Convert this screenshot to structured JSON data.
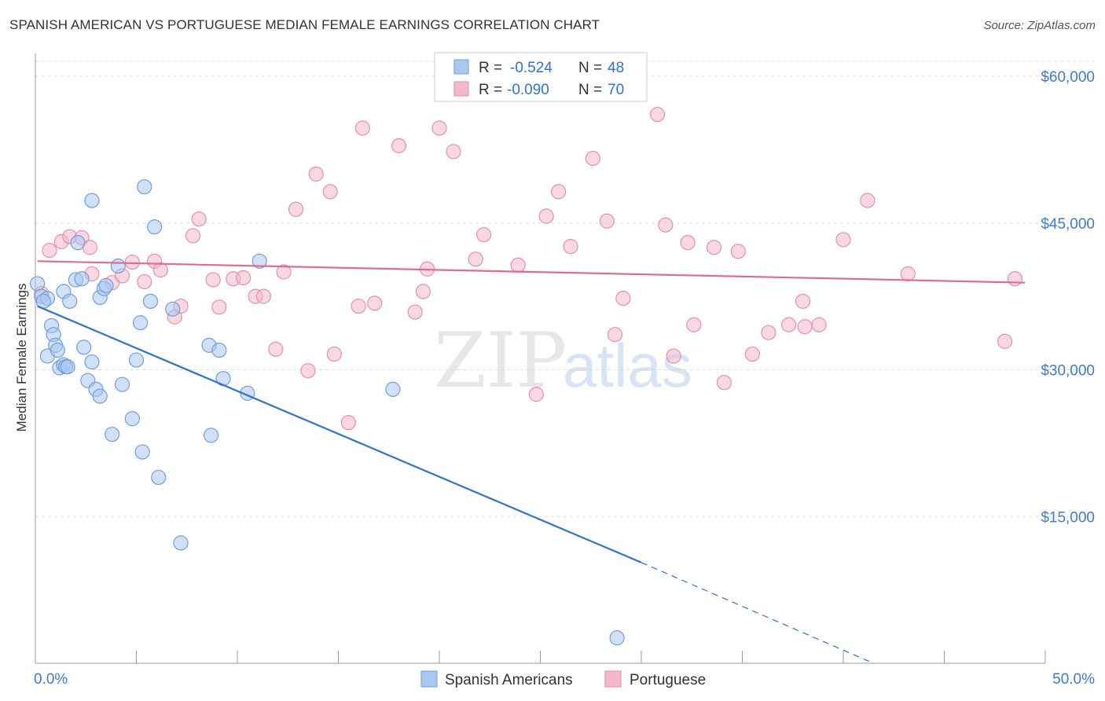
{
  "title": "SPANISH AMERICAN VS PORTUGUESE MEDIAN FEMALE EARNINGS CORRELATION CHART",
  "source": "Source: ZipAtlas.com",
  "watermark": {
    "zip": "ZIP",
    "atlas": "atlas"
  },
  "legend_stats": [
    {
      "r_label": "R =",
      "r_value": "-0.524",
      "n_label": "N =",
      "n_value": "48"
    },
    {
      "r_label": "R =",
      "r_value": "-0.090",
      "n_label": "N =",
      "n_value": "70"
    }
  ],
  "chart_data": {
    "type": "scatter",
    "ylabel": "Median Female Earnings",
    "xlim": [
      0,
      50
    ],
    "ylim": [
      0,
      64000
    ],
    "x_tick_labels": [
      "0.0%",
      "50.0%"
    ],
    "y_ticks": [
      {
        "value": 15000,
        "label": "$15,000"
      },
      {
        "value": 30000,
        "label": "$30,000"
      },
      {
        "value": 45000,
        "label": "$45,000"
      },
      {
        "value": 60000,
        "label": "$60,000"
      }
    ],
    "grid": true,
    "legend_position": "bottom-center",
    "series": [
      {
        "name": "Spanish Americans",
        "color": "#a9c7ef",
        "stroke": "#6f9fdc",
        "line_color": "#2f72d0",
        "trend": {
          "x0": 0.1,
          "y0": 36500,
          "x1": 30.0,
          "y1": 10300,
          "x_dash_end": 41.5,
          "y_dash_end": 0
        },
        "points": [
          [
            0.1,
            38800
          ],
          [
            0.3,
            37500
          ],
          [
            0.6,
            37300
          ],
          [
            0.8,
            34500
          ],
          [
            0.9,
            33600
          ],
          [
            0.6,
            31400
          ],
          [
            1.0,
            32500
          ],
          [
            1.1,
            32000
          ],
          [
            1.2,
            30200
          ],
          [
            1.4,
            30500
          ],
          [
            1.5,
            30300
          ],
          [
            1.6,
            30300
          ],
          [
            1.4,
            38000
          ],
          [
            1.7,
            37000
          ],
          [
            2.0,
            39200
          ],
          [
            2.1,
            43000
          ],
          [
            2.3,
            39300
          ],
          [
            2.4,
            32300
          ],
          [
            2.6,
            28900
          ],
          [
            2.8,
            30800
          ],
          [
            3.0,
            28000
          ],
          [
            3.2,
            27300
          ],
          [
            3.2,
            37400
          ],
          [
            3.4,
            38300
          ],
          [
            3.5,
            38600
          ],
          [
            2.8,
            47300
          ],
          [
            3.8,
            23400
          ],
          [
            4.1,
            40600
          ],
          [
            4.3,
            28500
          ],
          [
            4.8,
            25000
          ],
          [
            5.0,
            31000
          ],
          [
            5.2,
            34800
          ],
          [
            5.3,
            21600
          ],
          [
            5.4,
            48700
          ],
          [
            5.7,
            37000
          ],
          [
            5.9,
            44600
          ],
          [
            6.1,
            19000
          ],
          [
            6.8,
            36200
          ],
          [
            7.2,
            12300
          ],
          [
            8.6,
            32500
          ],
          [
            8.7,
            23300
          ],
          [
            9.1,
            32000
          ],
          [
            9.3,
            29100
          ],
          [
            10.5,
            27600
          ],
          [
            11.1,
            41100
          ],
          [
            17.7,
            28000
          ],
          [
            28.8,
            2600
          ],
          [
            0.4,
            37000
          ]
        ]
      },
      {
        "name": "Portuguese",
        "color": "#f4b8cb",
        "stroke": "#e58fab",
        "line_color": "#e06a93",
        "trend": {
          "x0": 0.1,
          "y0": 41100,
          "x1": 49.0,
          "y1": 38900
        },
        "points": [
          [
            0.3,
            37800
          ],
          [
            0.7,
            42200
          ],
          [
            1.3,
            43100
          ],
          [
            1.7,
            43600
          ],
          [
            2.3,
            43500
          ],
          [
            2.7,
            42500
          ],
          [
            2.8,
            39800
          ],
          [
            3.8,
            38900
          ],
          [
            4.3,
            39600
          ],
          [
            4.8,
            41000
          ],
          [
            5.4,
            39000
          ],
          [
            5.9,
            41100
          ],
          [
            6.2,
            40200
          ],
          [
            6.9,
            35400
          ],
          [
            7.2,
            36500
          ],
          [
            7.8,
            43700
          ],
          [
            8.1,
            45400
          ],
          [
            8.8,
            39200
          ],
          [
            9.1,
            36400
          ],
          [
            9.8,
            39300
          ],
          [
            10.3,
            39400
          ],
          [
            10.9,
            37500
          ],
          [
            11.3,
            37500
          ],
          [
            11.9,
            32100
          ],
          [
            12.3,
            40000
          ],
          [
            12.9,
            46400
          ],
          [
            13.5,
            29900
          ],
          [
            13.9,
            50000
          ],
          [
            14.6,
            48200
          ],
          [
            14.8,
            31600
          ],
          [
            15.5,
            24600
          ],
          [
            16.0,
            36500
          ],
          [
            16.2,
            54700
          ],
          [
            16.8,
            36800
          ],
          [
            18.0,
            52900
          ],
          [
            18.8,
            35900
          ],
          [
            19.2,
            38000
          ],
          [
            19.4,
            40300
          ],
          [
            20.0,
            54700
          ],
          [
            20.7,
            52300
          ],
          [
            21.8,
            41300
          ],
          [
            22.2,
            43800
          ],
          [
            23.9,
            40700
          ],
          [
            24.8,
            27500
          ],
          [
            25.3,
            45700
          ],
          [
            25.9,
            48200
          ],
          [
            26.5,
            42600
          ],
          [
            27.6,
            51600
          ],
          [
            28.3,
            45200
          ],
          [
            28.7,
            33600
          ],
          [
            29.1,
            37300
          ],
          [
            30.8,
            56100
          ],
          [
            31.2,
            44800
          ],
          [
            31.6,
            31400
          ],
          [
            32.3,
            43000
          ],
          [
            32.6,
            34600
          ],
          [
            33.6,
            42500
          ],
          [
            34.1,
            28700
          ],
          [
            34.8,
            42100
          ],
          [
            35.5,
            31600
          ],
          [
            36.3,
            33800
          ],
          [
            37.3,
            34600
          ],
          [
            38.0,
            37000
          ],
          [
            38.1,
            34400
          ],
          [
            38.8,
            34600
          ],
          [
            40.0,
            43300
          ],
          [
            41.2,
            47300
          ],
          [
            43.2,
            39800
          ],
          [
            48.0,
            32900
          ],
          [
            48.5,
            39300
          ]
        ]
      }
    ]
  }
}
